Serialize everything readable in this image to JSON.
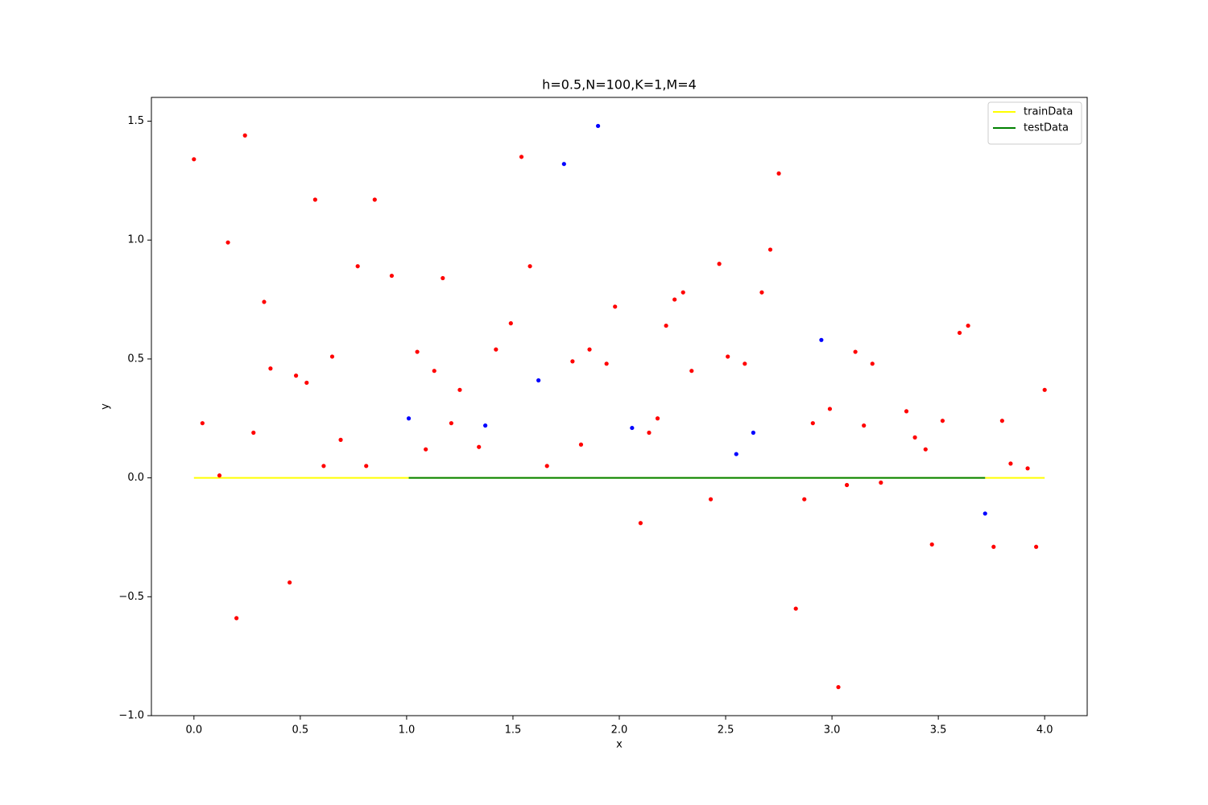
{
  "chart_data": {
    "type": "scatter",
    "title": "h=0.5,N=100,K=1,M=4",
    "x_label": "x",
    "y_label": "y",
    "xlim": [
      -0.2,
      4.2
    ],
    "ylim": [
      -1.0,
      1.6
    ],
    "xticks": [
      {
        "value": 0,
        "label": "0.0"
      },
      {
        "value": 0.5,
        "label": "0.5"
      },
      {
        "value": 1,
        "label": "1.0"
      },
      {
        "value": 1.5,
        "label": "1.5"
      },
      {
        "value": 2,
        "label": "2.0"
      },
      {
        "value": 2.5,
        "label": "2.5"
      },
      {
        "value": 3,
        "label": "3.0"
      },
      {
        "value": 3.5,
        "label": "3.5"
      },
      {
        "value": 4,
        "label": "4.0"
      }
    ],
    "yticks": [
      {
        "value": -1,
        "label": "−1.0"
      },
      {
        "value": -0.5,
        "label": "−0.5"
      },
      {
        "value": 0,
        "label": "0.0"
      },
      {
        "value": 0.5,
        "label": "0.5"
      },
      {
        "value": 1,
        "label": "1.0"
      },
      {
        "value": 1.5,
        "label": "1.5"
      }
    ],
    "legend_position": "upper right",
    "series": [
      {
        "name": "trainData",
        "type": "line",
        "color": "#ffff00",
        "x": [
          0,
          4
        ],
        "values": [
          0,
          0
        ]
      },
      {
        "name": "testData",
        "type": "line",
        "color": "#008000",
        "x": [
          1.01,
          3.72
        ],
        "values": [
          0,
          0
        ]
      },
      {
        "type": "scatter",
        "color": "#ff0000",
        "x": [
          0,
          0.04,
          0.12,
          0.16,
          0.2,
          0.24,
          0.28,
          0.33,
          0.36,
          0.45,
          0.48,
          0.53,
          0.57,
          0.61,
          0.65,
          0.69,
          0.77,
          0.81,
          0.85,
          0.93,
          1.05,
          1.09,
          1.13,
          1.17,
          1.21,
          1.25,
          1.34,
          1.42,
          1.49,
          1.54,
          1.58,
          1.66,
          1.78,
          1.82,
          1.86,
          1.94,
          1.98,
          2.1,
          2.14,
          2.18,
          2.22,
          2.26,
          2.3,
          2.34,
          2.43,
          2.47,
          2.51,
          2.59,
          2.67,
          2.71,
          2.75,
          2.83,
          2.87,
          2.91,
          2.99,
          3.03,
          3.07,
          3.11,
          3.15,
          3.19,
          3.23,
          3.35,
          3.39,
          3.44,
          3.47,
          3.52,
          3.6,
          3.64,
          3.76,
          3.8,
          3.84,
          3.92,
          3.96,
          4.0
        ],
        "values": [
          1.34,
          0.23,
          0.01,
          0.99,
          -0.59,
          1.44,
          0.19,
          0.74,
          0.46,
          -0.44,
          0.43,
          0.4,
          1.17,
          0.05,
          0.51,
          0.16,
          0.89,
          0.05,
          1.17,
          0.85,
          0.53,
          0.12,
          0.45,
          0.84,
          0.23,
          0.37,
          0.13,
          0.54,
          0.65,
          1.35,
          0.89,
          0.05,
          0.49,
          0.14,
          0.54,
          0.48,
          0.72,
          -0.19,
          0.19,
          0.25,
          0.64,
          0.75,
          0.78,
          0.45,
          -0.09,
          0.9,
          0.51,
          0.48,
          0.78,
          0.96,
          1.28,
          -0.55,
          -0.09,
          0.23,
          0.29,
          -0.88,
          -0.03,
          0.53,
          0.22,
          0.48,
          -0.02,
          0.28,
          0.17,
          0.12,
          -0.28,
          0.24,
          0.61,
          0.64,
          -0.29,
          0.24,
          0.06,
          0.04,
          -0.29,
          0.37
        ]
      },
      {
        "type": "scatter",
        "color": "#0000ff",
        "x": [
          1.01,
          1.37,
          1.62,
          1.74,
          1.9,
          2.06,
          2.55,
          2.63,
          2.95,
          3.72
        ],
        "values": [
          0.25,
          0.22,
          0.41,
          1.32,
          1.48,
          0.21,
          0.1,
          0.19,
          0.58,
          -0.15
        ]
      }
    ]
  }
}
